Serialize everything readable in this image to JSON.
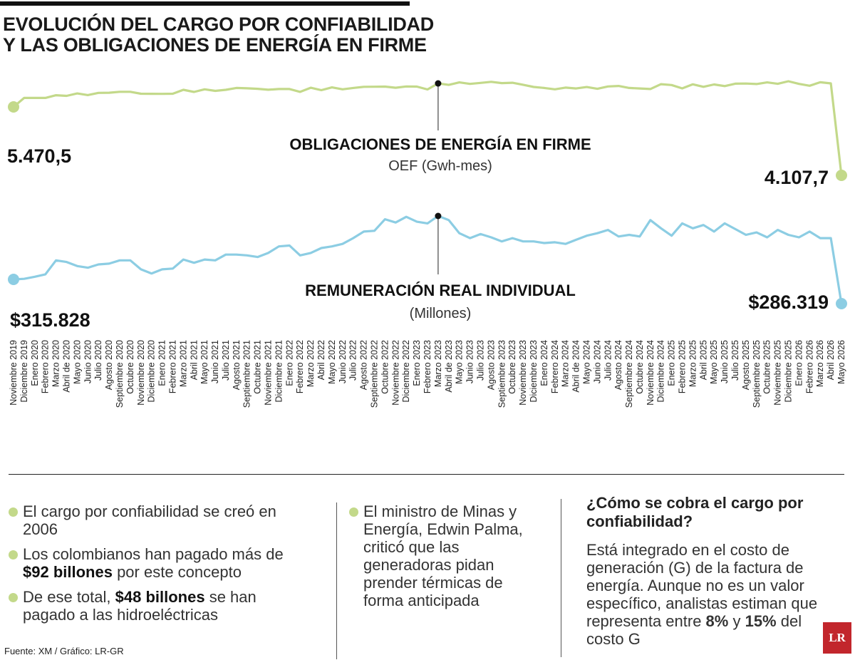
{
  "title": {
    "line1": "EVOLUCIÓN DEL CARGO POR CONFIABILIDAD",
    "line2": "Y LAS OBLIGACIONES DE ENERGÍA EN FIRME"
  },
  "colors": {
    "oef": "#c3d98a",
    "remuneracion": "#8ccde3",
    "marker": "#111111"
  },
  "chart_data": [
    {
      "type": "line",
      "title": "OBLIGACIONES DE ENERGÍA EN FIRME",
      "subtitle": "OEF (Gwh-mes)",
      "start_label": "5.470,5",
      "end_label": "4.107,7",
      "x": [
        "Noviembre 2019",
        "Diciembre 2019",
        "Enero 2020",
        "Febrero 2020",
        "Marzo 2020",
        "Abril de 2020",
        "Mayo 2020",
        "Junio 2020",
        "Julio 2020",
        "Agosto 2020",
        "Septiembre 2020",
        "Octubre 2020",
        "Noviembre 2020",
        "Diciembre 2020",
        "Enero 2021",
        "Febrero 2021",
        "Marzo 2021",
        "Abril 2021",
        "Mayo 2021",
        "Junio 2021",
        "Julio 2021",
        "Agosto 2021",
        "Septiembre 2021",
        "Octubre 2021",
        "Noviembre 2021",
        "Diciembre 2021",
        "Enero 2022",
        "Febrero 2022",
        "Marzo 2022",
        "Abril 2022",
        "Mayo 2022",
        "Junio 2022",
        "Julio 2022",
        "Agosto 2022",
        "Septiembre 2022",
        "Octubre 2022",
        "Noviembre 2022",
        "Diciembre 2022",
        "Enero 2023",
        "Febrero 2023",
        "Marzo 2023",
        "Abril de 2023",
        "Mayo 2023",
        "Junio 2023",
        "Julio 2023",
        "Agosto 2023",
        "Septiembre 2023",
        "Octubre 2023",
        "Noviembre 2023",
        "Diciembre 2023",
        "Enero 2024",
        "Febrero 2024",
        "Marzo 2024",
        "Abril de 2024",
        "Mayo 2024",
        "Junio 2024",
        "Julio 2024",
        "Agosto 2024",
        "Septiembre 2024",
        "Octubre 2024",
        "Noviembre 2024",
        "Diciembre 2024",
        "Enero 2025",
        "Febrero 2025",
        "Marzo 2025",
        "Abril 2025",
        "Mayo 2025",
        "Junio 2025",
        "Julio 2025",
        "Agosto 2025",
        "Septiembre 2025",
        "Octubre 2025",
        "Noviembre 2025",
        "Diciembre 2025",
        "Enero 2026",
        "Febrero 2026",
        "Marzo 2026",
        "Abril 2026",
        "Mayo 2026"
      ],
      "values": [
        5470.5,
        5649,
        5649,
        5649,
        5703,
        5690,
        5739,
        5706,
        5749,
        5752,
        5771,
        5771,
        5732,
        5731,
        5730,
        5733,
        5810,
        5768,
        5821,
        5789,
        5811,
        5847,
        5840,
        5830,
        5812,
        5826,
        5826,
        5769,
        5852,
        5803,
        5859,
        5820,
        5847,
        5871,
        5872,
        5875,
        5852,
        5877,
        5875,
        5818,
        5938,
        5909,
        5958,
        5928,
        5948,
        5970,
        5944,
        5951,
        5911,
        5867,
        5847,
        5820,
        5855,
        5837,
        5866,
        5830,
        5877,
        5887,
        5847,
        5838,
        5826,
        5923,
        5906,
        5839,
        5920,
        5870,
        5917,
        5884,
        5933,
        5935,
        5926,
        5959,
        5930,
        5981,
        5929,
        5892,
        5961,
        5938,
        4107.7
      ],
      "highlight_x": "Marzo 2023"
    },
    {
      "type": "line",
      "title": "REMUNERACIÓN REAL INDIVIDUAL",
      "subtitle": "(Millones)",
      "start_label": "$315.828",
      "end_label": "$286.319",
      "x": [
        "Noviembre 2019",
        "Diciembre 2019",
        "Enero 2020",
        "Febrero 2020",
        "Marzo 2020",
        "Abril de 2020",
        "Mayo 2020",
        "Junio 2020",
        "Julio 2020",
        "Agosto 2020",
        "Septiembre 2020",
        "Octubre 2020",
        "Noviembre 2020",
        "Diciembre 2020",
        "Enero 2021",
        "Febrero 2021",
        "Marzo 2021",
        "Abril 2021",
        "Mayo 2021",
        "Junio 2021",
        "Julio 2021",
        "Agosto 2021",
        "Septiembre 2021",
        "Octubre 2021",
        "Noviembre 2021",
        "Diciembre 2021",
        "Enero 2022",
        "Febrero 2022",
        "Marzo 2022",
        "Abril 2022",
        "Mayo 2022",
        "Junio 2022",
        "Julio 2022",
        "Agosto 2022",
        "Septiembre 2022",
        "Octubre 2022",
        "Noviembre 2022",
        "Diciembre 2022",
        "Enero 2023",
        "Febrero 2023",
        "Marzo 2023",
        "Abril de 2023",
        "Mayo 2023",
        "Junio 2023",
        "Julio 2023",
        "Agosto 2023",
        "Septiembre 2023",
        "Octubre 2023",
        "Noviembre 2023",
        "Diciembre 2023",
        "Enero 2024",
        "Febrero 2024",
        "Marzo 2024",
        "Abril de 2024",
        "Mayo 2024",
        "Junio 2024",
        "Julio 2024",
        "Agosto 2024",
        "Septiembre 2024",
        "Octubre 2024",
        "Noviembre 2024",
        "Diciembre 2024",
        "Enero 2025",
        "Febrero 2025",
        "Marzo 2025",
        "Abril 2025",
        "Mayo 2025",
        "Junio 2025",
        "Julio 2025",
        "Agosto 2025",
        "Septiembre 2025",
        "Octubre 2025",
        "Noviembre 2025",
        "Diciembre 2025",
        "Enero 2026",
        "Febrero 2026",
        "Marzo 2026",
        "Abril 2026",
        "Mayo 2026"
      ],
      "values": [
        315828,
        316500,
        319000,
        322000,
        339000,
        337000,
        332000,
        330000,
        334000,
        335000,
        339000,
        339000,
        328000,
        323000,
        328000,
        329000,
        340000,
        336000,
        340000,
        339000,
        346000,
        346000,
        345000,
        343000,
        348000,
        356000,
        357000,
        345000,
        348000,
        354000,
        356000,
        359000,
        366000,
        374000,
        375000,
        389000,
        385000,
        392000,
        386000,
        384000,
        393000,
        388000,
        372000,
        366000,
        371000,
        367000,
        362000,
        366000,
        362000,
        362000,
        360000,
        361000,
        359000,
        364000,
        369000,
        372000,
        376000,
        368000,
        370000,
        368000,
        388000,
        378000,
        369000,
        384000,
        378000,
        382000,
        374000,
        384000,
        377000,
        370000,
        373000,
        367000,
        376000,
        370000,
        367000,
        374000,
        366000,
        366000,
        286319
      ],
      "highlight_x": "Marzo 2023"
    }
  ],
  "bullets_left": [
    {
      "parts": [
        {
          "text": "El cargo por confiabilidad se creó en 2006",
          "bold": false
        }
      ]
    },
    {
      "parts": [
        {
          "text": "Los colombianos han pagado más de ",
          "bold": false
        },
        {
          "text": "$92 billones",
          "bold": true
        },
        {
          "text": " por este concepto",
          "bold": false
        }
      ]
    },
    {
      "parts": [
        {
          "text": "De ese total, ",
          "bold": false
        },
        {
          "text": "$48 billones",
          "bold": true
        },
        {
          "text": " se han pagado a las hidroeléctricas",
          "bold": false
        }
      ]
    }
  ],
  "bullet_middle": "El ministro de Minas y Energía, Edwin Palma, criticó que las generadoras pidan prender térmicas de forma anticipada",
  "question": {
    "title": "¿Cómo se cobra el cargo por confiabilidad?",
    "text_before": "Está integrado en el costo de generación (G) de la factura de energía. Aunque no es un valor específico, analistas estiman que representa entre ",
    "bold1": "8%",
    "text_mid": " y ",
    "bold2": "15%",
    "text_after": " del costo G"
  },
  "source": "Fuente: XM / Gráfico: LR-GR",
  "logo": "LR"
}
